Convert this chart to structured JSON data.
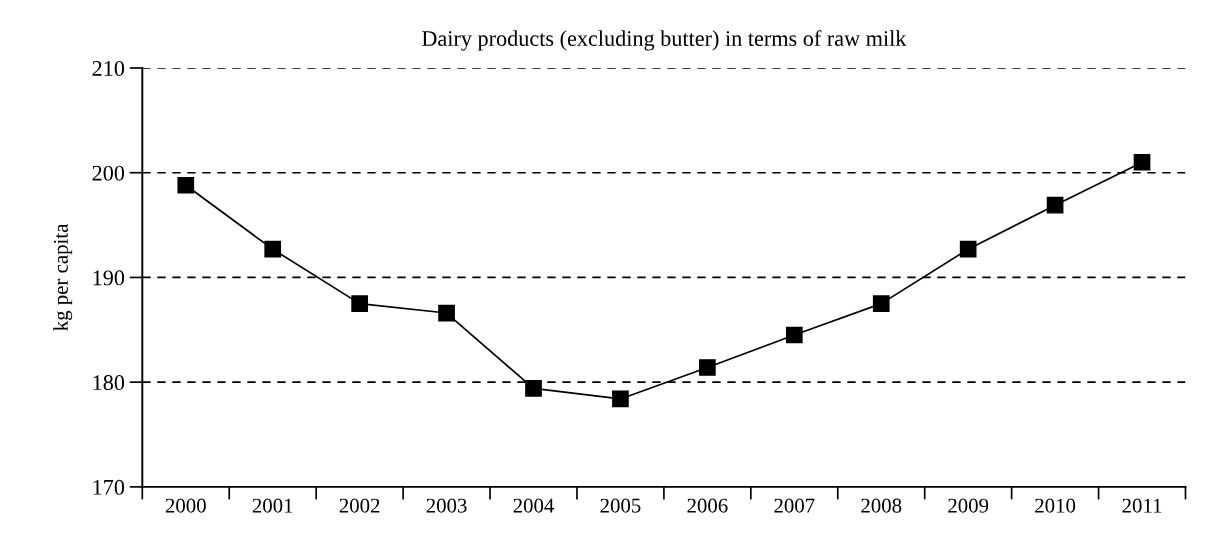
{
  "chart_data": {
    "type": "line",
    "title": "Dairy products (excluding butter) in terms of raw milk",
    "ylabel": "kg per capita",
    "categories": [
      "2000",
      "2001",
      "2002",
      "2003",
      "2004",
      "2005",
      "2006",
      "2007",
      "2008",
      "2009",
      "2010",
      "2011"
    ],
    "series": [
      {
        "color": "#000000",
        "values": [
          198.8,
          192.7,
          187.5,
          186.6,
          179.4,
          178.4,
          181.4,
          184.5,
          187.5,
          192.7,
          196.9,
          201.0
        ]
      }
    ],
    "ylim": [
      170,
      210
    ],
    "yticks": [
      170,
      180,
      190,
      200,
      210
    ],
    "grid": "y",
    "marker": "square",
    "line_style": "solid"
  }
}
